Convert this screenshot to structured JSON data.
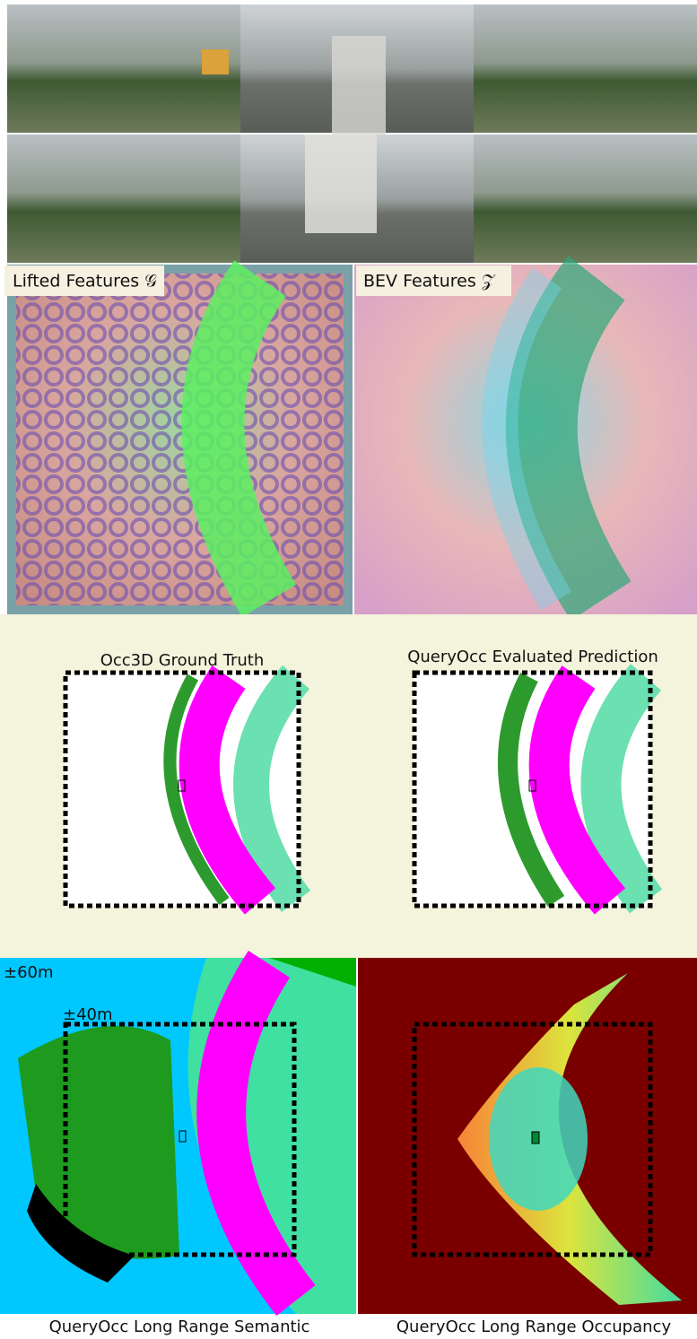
{
  "feature_panels": [
    {
      "label": "Lifted Features 𝒢"
    },
    {
      "label": "BEV Features 𝒵"
    }
  ],
  "occupancy_panels": [
    {
      "title": "Occ3D Ground Truth"
    },
    {
      "title": "QueryOcc Evaluated Prediction"
    }
  ],
  "long_range_panels": [
    {
      "caption": "QueryOcc Long Range Semantic",
      "range_outer": "±60m",
      "range_inner": "±40m"
    },
    {
      "caption": "QueryOcc Long Range Occupancy"
    }
  ]
}
